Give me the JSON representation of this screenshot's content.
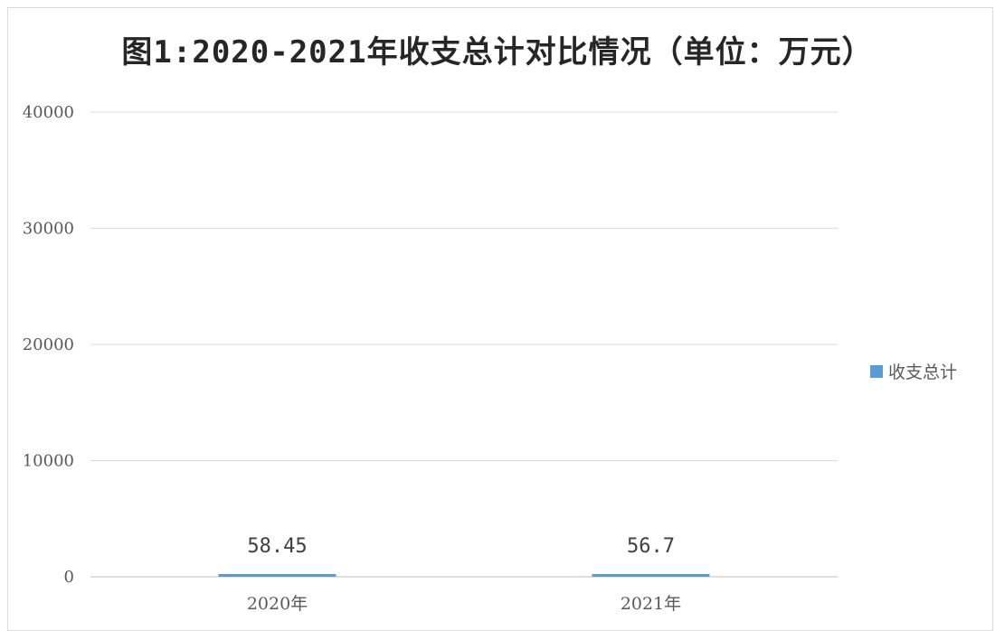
{
  "chart_data": {
    "type": "bar",
    "title": "图1:2020-2021年收支总计对比情况（单位：万元）",
    "categories": [
      "2020年",
      "2021年"
    ],
    "series": [
      {
        "name": "收支总计",
        "values": [
          58.45,
          56.7
        ],
        "data_labels": [
          "58.45",
          "56.7"
        ]
      }
    ],
    "ylim": [
      0,
      40000
    ],
    "yticks": [
      0,
      10000,
      20000,
      30000,
      40000
    ],
    "ytick_labels": [
      "0",
      "10000",
      "20000",
      "30000",
      "40000"
    ],
    "grid": true,
    "legend_position": "right",
    "colors": {
      "bar": "#5b9bd5",
      "grid": "#d9d9d9",
      "axis": "#bfbfbf"
    }
  }
}
